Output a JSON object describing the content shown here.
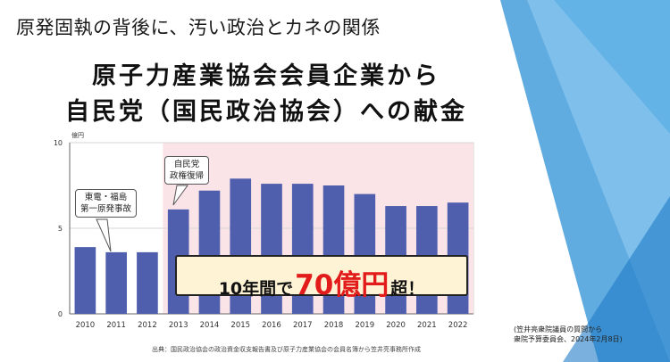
{
  "slide": {
    "heading": "原発固執の背後に、汚い政治とカネの関係",
    "citation_line1": "(笠井亮衆院議員の質問から",
    "citation_line2": "衆院予算委員会、2024年2月8日)",
    "source_note": "出典：国民政治協会の政治資金収支報告書及び原子力産業協会の会員名簿から笠井亮事務所作成"
  },
  "annotations": {
    "tepco_line1": "東電・福島",
    "tepco_line2": "第一原発事故",
    "ldp_line1": "自民党",
    "ldp_line2": "政権復帰",
    "highlight_pre": "10年間で",
    "highlight_num": "70億円",
    "highlight_post": "超！"
  },
  "colors": {
    "bar": "#4f5fad",
    "highlight_period": "#fbe4e8",
    "highlight_text": "#e21b1b",
    "deco_blue": "#2b8fd6",
    "deco_light": "#8cc8f0"
  },
  "chart_data": {
    "type": "bar",
    "title_line1": "原子力産業協会会員企業から",
    "title_line2": "自民党（国民政治協会）への献金",
    "ylabel": "億円",
    "ylim": [
      0,
      10
    ],
    "yticks": [
      0,
      5,
      10
    ],
    "categories": [
      "2010",
      "2011",
      "2012",
      "2013",
      "2014",
      "2015",
      "2016",
      "2017",
      "2018",
      "2019",
      "2020",
      "2021",
      "2022"
    ],
    "values": [
      3.9,
      3.6,
      3.6,
      6.1,
      7.2,
      7.9,
      7.6,
      7.6,
      7.5,
      7.0,
      6.3,
      6.3,
      6.5
    ],
    "highlight_range": [
      "2013",
      "2022"
    ]
  }
}
